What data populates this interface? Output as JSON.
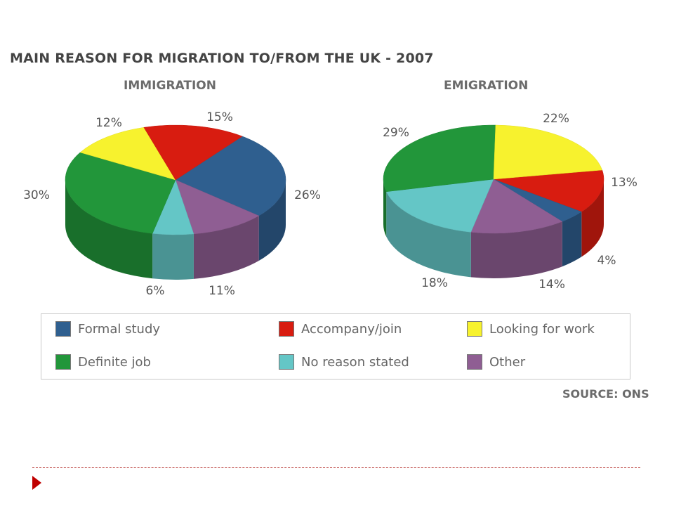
{
  "title": "MAIN REASON FOR MIGRATION TO/FROM THE UK - 2007",
  "source": "SOURCE: ONS",
  "chart_data": [
    {
      "type": "pie",
      "title": "IMMIGRATION",
      "slices": [
        {
          "key": "formal",
          "label": "Formal study",
          "value": 26
        },
        {
          "key": "other",
          "label": "Other",
          "value": 11
        },
        {
          "key": "noreason",
          "label": "No reason stated",
          "value": 6
        },
        {
          "key": "definite",
          "label": "Definite job",
          "value": 30
        },
        {
          "key": "looking",
          "label": "Looking for work",
          "value": 12
        },
        {
          "key": "accompany",
          "label": "Accompany/join",
          "value": 15
        }
      ],
      "value_labels": [
        "26%",
        "11%",
        "6%",
        "30%",
        "12%",
        "15%"
      ]
    },
    {
      "type": "pie",
      "title": "EMIGRATION",
      "slices": [
        {
          "key": "accompany",
          "label": "Accompany/join",
          "value": 13
        },
        {
          "key": "formal",
          "label": "Formal study",
          "value": 4
        },
        {
          "key": "other",
          "label": "Other",
          "value": 14
        },
        {
          "key": "noreason",
          "label": "No reason stated",
          "value": 18
        },
        {
          "key": "definite",
          "label": "Definite job",
          "value": 29
        },
        {
          "key": "looking",
          "label": "Looking for work",
          "value": 22
        }
      ],
      "value_labels": [
        "13%",
        "4%",
        "14%",
        "18%",
        "29%",
        "22%"
      ]
    }
  ],
  "legend": [
    {
      "key": "formal",
      "label": "Formal study",
      "color": "#2f5f8f"
    },
    {
      "key": "accompany",
      "label": "Accompany/join",
      "color": "#d81c10"
    },
    {
      "key": "looking",
      "label": "Looking for work",
      "color": "#f7f22e"
    },
    {
      "key": "definite",
      "label": "Definite job",
      "color": "#22963a"
    },
    {
      "key": "noreason",
      "label": "No reason stated",
      "color": "#64c6c6"
    },
    {
      "key": "other",
      "label": "Other",
      "color": "#8f5e93"
    }
  ],
  "legend_placement": "bottom"
}
